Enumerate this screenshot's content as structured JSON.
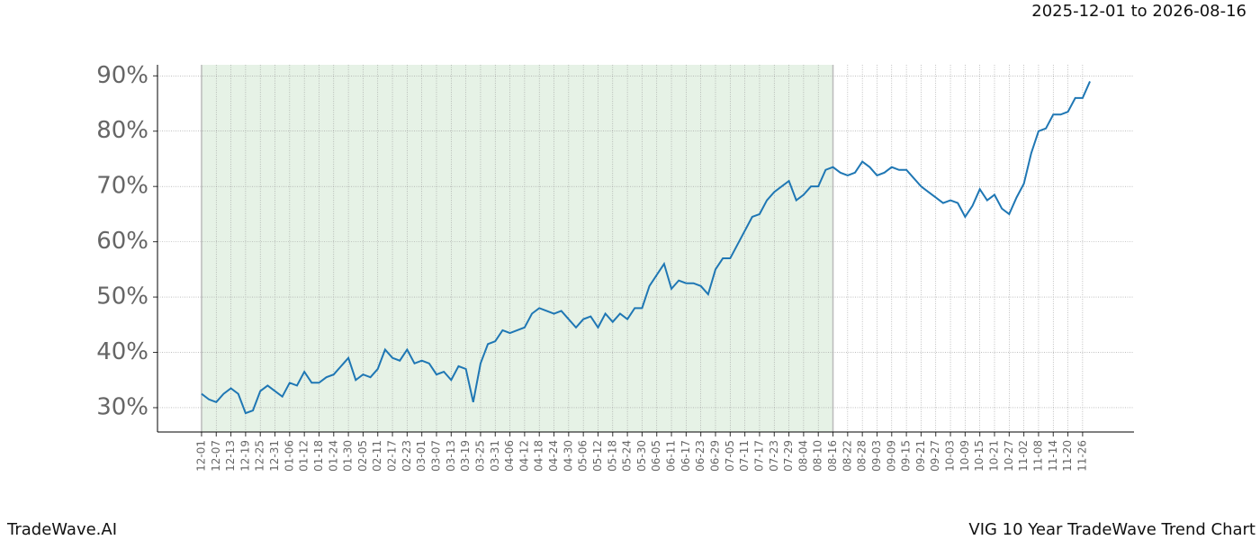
{
  "chart_data": {
    "type": "line",
    "date_range": "2025-12-01 to 2026-08-16",
    "footer_left": "TradeWave.AI",
    "footer_right": "VIG 10 Year TradeWave Trend Chart",
    "color": "#1f77b4",
    "grid": true,
    "highlight": {
      "from": "12-01",
      "to": "08-16",
      "color": "#e6f2e6"
    },
    "ylim": [
      25.6,
      92
    ],
    "yticks": [
      {
        "value": 30,
        "label": "30%"
      },
      {
        "value": 40,
        "label": "40%"
      },
      {
        "value": 50,
        "label": "50%"
      },
      {
        "value": 60,
        "label": "60%"
      },
      {
        "value": 70,
        "label": "70%"
      },
      {
        "value": 80,
        "label": "80%"
      },
      {
        "value": 90,
        "label": "90%"
      }
    ],
    "categories": [
      "12-01",
      null,
      "12-07",
      null,
      "12-13",
      null,
      "12-19",
      null,
      "12-25",
      null,
      "12-31",
      null,
      "01-06",
      null,
      "01-12",
      null,
      "01-18",
      null,
      "01-24",
      null,
      "01-30",
      null,
      "02-05",
      null,
      "02-11",
      null,
      "02-17",
      null,
      "02-23",
      null,
      "03-01",
      null,
      "03-07",
      null,
      "03-13",
      null,
      "03-19",
      null,
      "03-25",
      null,
      "03-31",
      null,
      "04-06",
      null,
      "04-12",
      null,
      "04-18",
      null,
      "04-24",
      null,
      "04-30",
      null,
      "05-06",
      null,
      "05-12",
      null,
      "05-18",
      null,
      "05-24",
      null,
      "05-30",
      null,
      "06-05",
      null,
      "06-11",
      null,
      "06-17",
      null,
      "06-23",
      null,
      "06-29",
      null,
      "07-05",
      null,
      "07-11",
      null,
      "07-17",
      null,
      "07-23",
      null,
      "07-29",
      null,
      "08-04",
      null,
      "08-10",
      null,
      "08-16",
      null,
      "08-22",
      null,
      "08-28",
      null,
      "09-03",
      null,
      "09-09",
      null,
      "09-15",
      null,
      "09-21",
      null,
      "09-27",
      null,
      "10-03",
      null,
      "10-09",
      null,
      "10-15",
      null,
      "10-21",
      null,
      "10-27",
      null,
      "11-02",
      null,
      "11-08",
      null,
      "11-14",
      null,
      "11-20",
      null,
      "11-26",
      null
    ],
    "values": [
      32.5,
      31.5,
      31,
      32.5,
      33.5,
      32.5,
      29,
      29.5,
      33,
      34,
      33,
      32,
      34.5,
      34,
      36.5,
      34.5,
      34.5,
      35.5,
      36,
      37.5,
      39,
      35,
      36,
      35.5,
      37,
      40.5,
      39,
      38.5,
      40.5,
      38,
      38.5,
      38,
      36,
      36.5,
      35,
      37.5,
      37,
      31,
      38,
      41.5,
      42,
      44,
      43.5,
      44,
      44.5,
      47,
      48,
      47.5,
      47,
      47.5,
      46,
      44.5,
      46,
      46.5,
      44.5,
      47,
      45.5,
      47,
      46,
      48,
      48,
      52,
      54,
      56,
      51.5,
      53,
      52.5,
      52.5,
      52,
      50.5,
      55,
      57,
      57,
      59.5,
      62,
      64.5,
      65,
      67.5,
      69,
      70,
      71,
      67.5,
      68.5,
      70,
      70,
      73,
      73.5,
      72.5,
      72,
      72.5,
      74.5,
      73.5,
      72,
      72.5,
      73.5,
      73,
      73,
      71.5,
      70,
      69,
      68,
      67,
      67.5,
      67,
      64.5,
      66.5,
      69.5,
      67.5,
      68.5,
      66,
      65,
      68,
      70.5,
      76,
      80,
      80.5,
      83,
      83,
      83.5,
      86,
      86,
      89
    ]
  }
}
